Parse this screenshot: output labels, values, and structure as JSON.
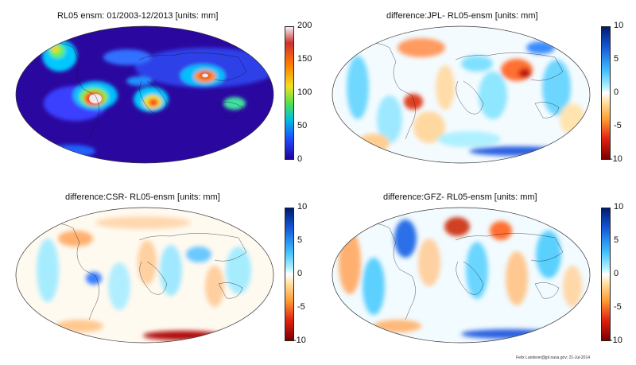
{
  "panels": [
    {
      "id": "rl05",
      "title": "RL05 ensm: 01/2003-12/2013 [units: mm]",
      "colormap": "jet",
      "colorbar_ticks": [
        "200",
        "150",
        "100",
        "50",
        "0"
      ],
      "colorbar_colors": [
        "#f4f0f4",
        "#d03030",
        "#ff7a00",
        "#f0e020",
        "#50e050",
        "#00c0e0",
        "#2050ff",
        "#2000a0"
      ]
    },
    {
      "id": "jpl",
      "title": "difference:JPL- RL05-ensm [units: mm]",
      "colormap": "diverging",
      "colorbar_ticks": [
        "10",
        "5",
        "0",
        "-5",
        "-10"
      ],
      "colorbar_colors": [
        "#001a70",
        "#1458d8",
        "#3fc0ff",
        "#aef0ff",
        "#ffffff",
        "#ffe0a0",
        "#ff9c30",
        "#e02010",
        "#7a0000"
      ]
    },
    {
      "id": "csr",
      "title": "difference:CSR- RL05-ensm [units: mm]",
      "colormap": "diverging",
      "colorbar_ticks": [
        "10",
        "5",
        "0",
        "-5",
        "-10"
      ],
      "colorbar_colors": [
        "#001a70",
        "#1458d8",
        "#3fc0ff",
        "#aef0ff",
        "#ffffff",
        "#ffe0a0",
        "#ff9c30",
        "#e02010",
        "#7a0000"
      ]
    },
    {
      "id": "gfz",
      "title": "difference:GFZ- RL05-ensm [units: mm]",
      "colormap": "diverging",
      "colorbar_ticks": [
        "10",
        "5",
        "0",
        "-5",
        "-10"
      ],
      "colorbar_colors": [
        "#001a70",
        "#1458d8",
        "#3fc0ff",
        "#aef0ff",
        "#ffffff",
        "#ffe0a0",
        "#ff9c30",
        "#e02010",
        "#7a0000"
      ]
    }
  ],
  "credit": "Felix Landerer@jpl.nasa.gov; 21-Jul-2014"
}
